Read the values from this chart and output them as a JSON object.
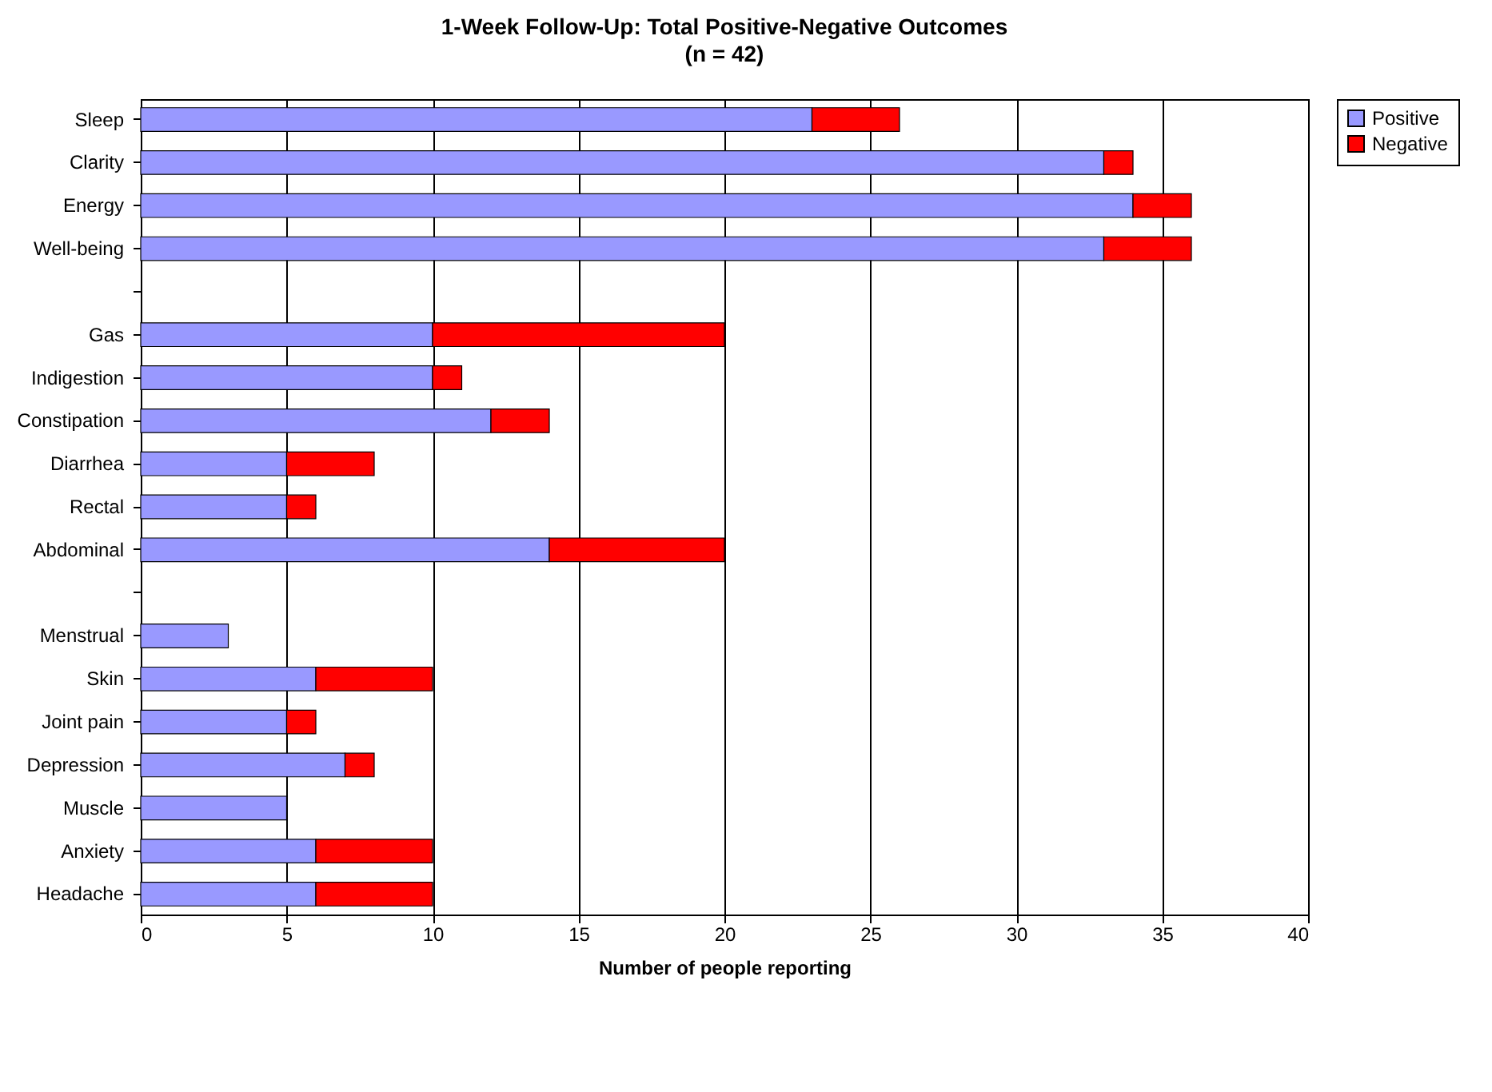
{
  "chart_data": {
    "type": "bar",
    "orientation": "horizontal",
    "stacked": true,
    "title": "1-Week Follow-Up: Total Positive-Negative Outcomes",
    "subtitle": "(n = 42)",
    "xlabel": "Number of people reporting",
    "categories": [
      "Sleep",
      "Clarity",
      "Energy",
      "Well-being",
      null,
      "Gas",
      "Indigestion",
      "Constipation",
      "Diarrhea",
      "Rectal",
      "Abdominal",
      null,
      "Menstrual",
      "Skin",
      "Joint pain",
      "Depression",
      "Muscle",
      "Anxiety",
      "Headache"
    ],
    "series": [
      {
        "name": "Positive",
        "color": "#9999ff",
        "values": [
          23,
          33,
          34,
          33,
          null,
          10,
          10,
          12,
          5,
          5,
          14,
          null,
          3,
          6,
          5,
          7,
          5,
          6,
          6
        ]
      },
      {
        "name": "Negative",
        "color": "#ff0000",
        "values": [
          3,
          1,
          2,
          3,
          null,
          10,
          1,
          2,
          3,
          1,
          6,
          null,
          0,
          4,
          1,
          1,
          0,
          4,
          4
        ]
      }
    ],
    "xlim": [
      0,
      40
    ],
    "xticks": [
      0,
      5,
      10,
      15,
      20,
      25,
      30,
      35,
      40
    ],
    "grid": "x",
    "legend": "right"
  }
}
